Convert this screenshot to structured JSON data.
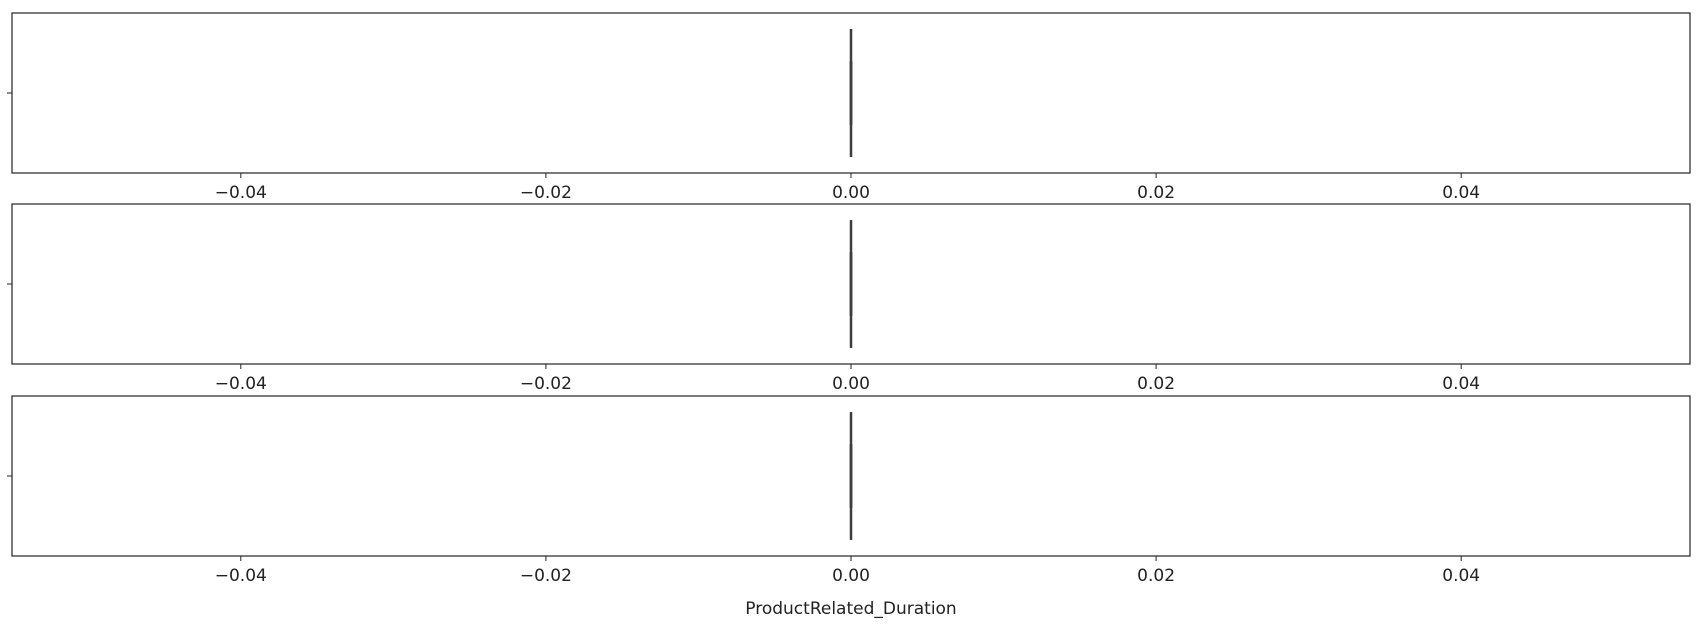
{
  "chart_data": [
    {
      "type": "box",
      "boxes": [
        {
          "min": 0,
          "q1": 0,
          "median": 0,
          "q3": 0,
          "max": 0
        }
      ],
      "color": "#3d3d3d",
      "xlim": [
        -0.055,
        0.055
      ],
      "xticks": [
        {
          "value": -0.04,
          "label": "−0.04"
        },
        {
          "value": -0.02,
          "label": "−0.02"
        },
        {
          "value": 0,
          "label": "0.00"
        },
        {
          "value": 0.02,
          "label": "0.02"
        },
        {
          "value": 0.04,
          "label": "0.04"
        }
      ]
    },
    {
      "type": "box",
      "boxes": [
        {
          "min": 0,
          "q1": 0,
          "median": 0,
          "q3": 0,
          "max": 0
        }
      ],
      "color": "#3d3d3d",
      "xlim": [
        -0.055,
        0.055
      ],
      "xticks": [
        {
          "value": -0.04,
          "label": "−0.04"
        },
        {
          "value": -0.02,
          "label": "−0.02"
        },
        {
          "value": 0,
          "label": "0.00"
        },
        {
          "value": 0.02,
          "label": "0.02"
        },
        {
          "value": 0.04,
          "label": "0.04"
        }
      ]
    },
    {
      "type": "box",
      "boxes": [
        {
          "min": 0,
          "q1": 0,
          "median": 0,
          "q3": 0,
          "max": 0
        }
      ],
      "color": "#3d3d3d",
      "xlim": [
        -0.055,
        0.055
      ],
      "xticks": [
        {
          "value": -0.04,
          "label": "−0.04"
        },
        {
          "value": -0.02,
          "label": "−0.02"
        },
        {
          "value": 0,
          "label": "0.00"
        },
        {
          "value": 0.02,
          "label": "0.02"
        },
        {
          "value": 0.04,
          "label": "0.04"
        }
      ],
      "xlabel": "ProductRelated_Duration"
    }
  ]
}
